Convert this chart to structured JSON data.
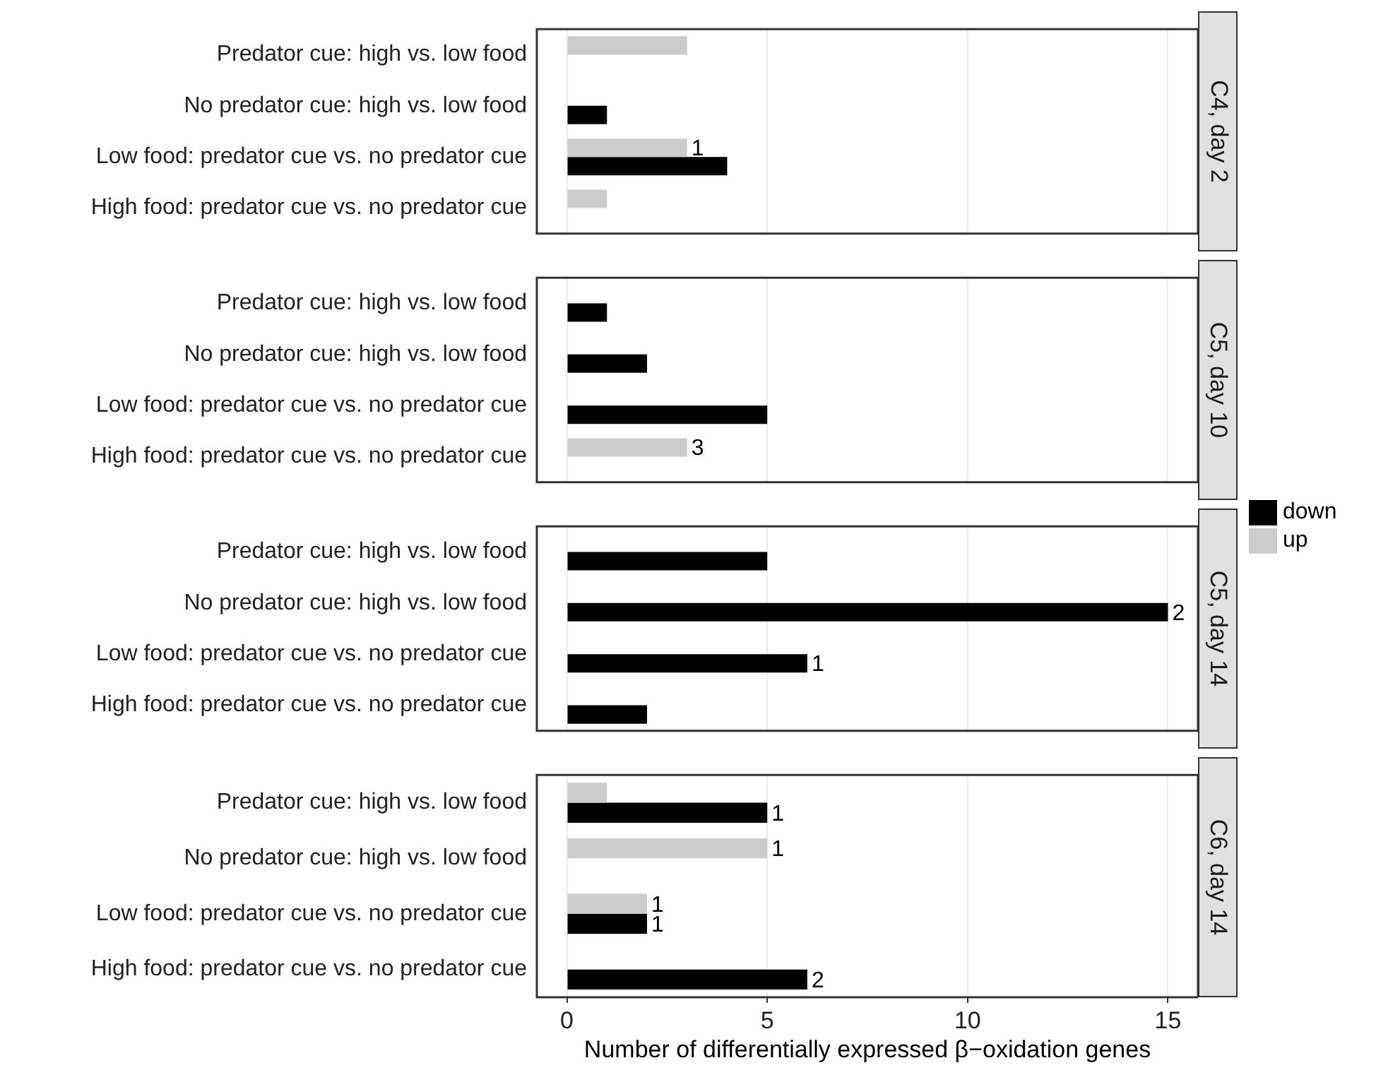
{
  "chart_data": [
    {
      "type": "bar",
      "orientation": "horizontal",
      "title": "C4, day 2",
      "categories": [
        "Predator cue: high vs. low food",
        "No predator cue: high vs. low food",
        "Low food: predator cue vs. no predator cue",
        "High food: predator cue vs. no predator cue"
      ],
      "series": [
        {
          "name": "down",
          "color": "#000000",
          "values": [
            null,
            1,
            4,
            null
          ]
        },
        {
          "name": "up",
          "color": "#cccccc",
          "values": [
            3,
            null,
            3,
            1
          ]
        }
      ],
      "annotations": [
        {
          "text": "1",
          "x": 3,
          "y": "Low food: predator cue vs. no predator cue"
        }
      ],
      "xlim": [
        -0.75,
        15.75
      ],
      "xticks": [
        0,
        5,
        10,
        15
      ],
      "grid": "x",
      "tick_labels": "y",
      "legend": "right"
    },
    {
      "type": "bar",
      "orientation": "horizontal",
      "title": "C5, day 10",
      "categories": [
        "Predator cue: high vs. low food",
        "No predator cue: high vs. low food",
        "Low food: predator cue vs. no predator cue",
        "High food: predator cue vs. no predator cue"
      ],
      "series": [
        {
          "color": "#000000",
          "values": [
            1,
            2,
            5,
            null
          ]
        },
        {
          "color": "#cccccc",
          "values": [
            null,
            null,
            null,
            3
          ]
        }
      ],
      "annotations": [
        {
          "text": "3",
          "x": 3,
          "y": "High food: predator cue vs. no predator cue"
        }
      ],
      "xlim": [
        -0.75,
        15.75
      ],
      "xticks": [
        0,
        5,
        10,
        15
      ],
      "grid": "x",
      "tick_labels": "y"
    },
    {
      "type": "bar",
      "orientation": "horizontal",
      "title": "C5, day 14",
      "categories": [
        "Predator cue: high vs. low food",
        "No predator cue: high vs. low food",
        "Low food: predator cue vs. no predator cue",
        "High food: predator cue vs. no predator cue"
      ],
      "series": [
        {
          "color": "#000000",
          "values": [
            5,
            15,
            6,
            2
          ]
        },
        {
          "color": "#cccccc",
          "values": [
            null,
            null,
            null,
            null
          ]
        }
      ],
      "annotations": [
        {
          "text": "2",
          "x": 15,
          "y": "No predator cue: high vs. low food"
        },
        {
          "text": "1",
          "x": 6,
          "y": "Low food: predator cue vs. no predator cue"
        }
      ],
      "xlim": [
        -0.75,
        15.75
      ],
      "xticks": [
        0,
        5,
        10,
        15
      ],
      "grid": "x",
      "tick_labels": "y"
    },
    {
      "type": "bar",
      "orientation": "horizontal",
      "title": "C6, day 14",
      "xlabel": "Number of differentially expressed β−oxidation genes",
      "categories": [
        "Predator cue: high vs. low food",
        "No predator cue: high vs. low food",
        "Low food: predator cue vs. no predator cue",
        "High food: predator cue vs. no predator cue"
      ],
      "series": [
        {
          "color": "#000000",
          "values": [
            5,
            null,
            2,
            6
          ]
        },
        {
          "color": "#cccccc",
          "values": [
            1,
            5,
            2,
            null
          ]
        }
      ],
      "annotations": [
        {
          "text": "1",
          "x": 5,
          "y": "Predator cue: high vs. low food"
        },
        {
          "text": "1",
          "x": 5,
          "y": "No predator cue: high vs. low food"
        },
        {
          "text": "1",
          "x": 2,
          "y": "Low food: predator cue vs. no predator cue"
        },
        {
          "text": "1",
          "x": 2,
          "y": "Low food: predator cue vs. no predator cue"
        },
        {
          "text": "2",
          "x": 6,
          "y": "High food: predator cue vs. no predator cue"
        }
      ],
      "xlim": [
        -0.75,
        15.75
      ],
      "xticks": [
        0,
        5,
        10,
        15
      ],
      "grid": "x"
    }
  ]
}
